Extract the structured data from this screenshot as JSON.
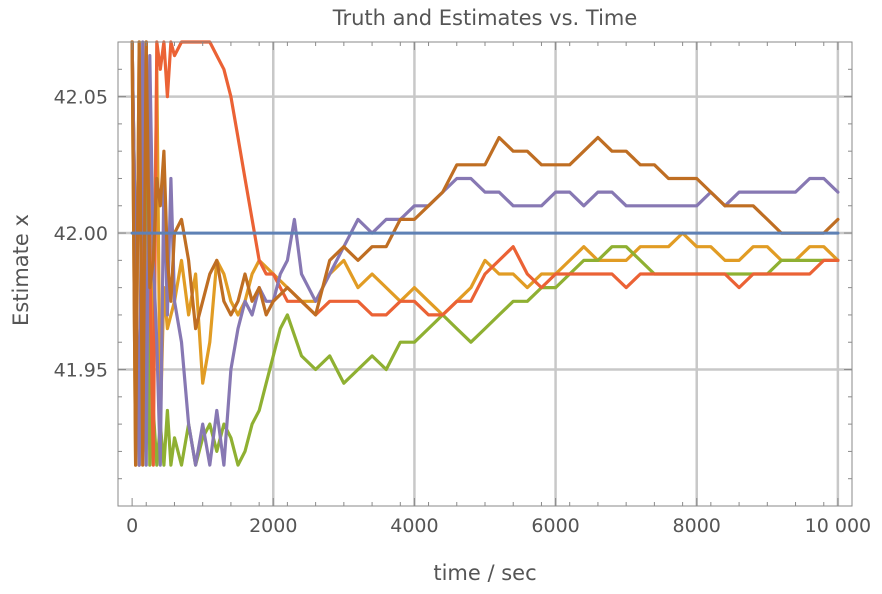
{
  "chart_data": {
    "type": "line",
    "title": "Truth and Estimates vs. Time",
    "xlabel": "time / sec",
    "ylabel": "Estimate x",
    "xlim": [
      -200,
      10200
    ],
    "ylim": [
      41.9,
      42.07
    ],
    "x_ticks": [
      0,
      2000,
      4000,
      6000,
      8000,
      10000
    ],
    "x_tick_labels": [
      "0",
      "2000",
      "4000",
      "6000",
      "8000",
      "10 000"
    ],
    "y_ticks": [
      41.95,
      42.0,
      42.05
    ],
    "y_tick_labels": [
      "41.95",
      "42.00",
      "42.05"
    ],
    "grid": true,
    "series": [
      {
        "color": "#5E81B5",
        "x": [
          0,
          10000
        ],
        "y": [
          42.0,
          42.0
        ]
      },
      {
        "color": "#E19C24",
        "x": [
          0,
          50,
          100,
          150,
          200,
          250,
          300,
          350,
          400,
          450,
          500,
          600,
          700,
          800,
          900,
          1000,
          1100,
          1200,
          1300,
          1400,
          1500,
          1600,
          1700,
          1800,
          2000,
          2200,
          2400,
          2600,
          2800,
          3000,
          3200,
          3400,
          3600,
          3800,
          4000,
          4200,
          4400,
          4600,
          4800,
          5000,
          5200,
          5400,
          5600,
          5800,
          6000,
          6200,
          6400,
          6600,
          6800,
          7000,
          7200,
          7400,
          7600,
          7800,
          8000,
          8200,
          8400,
          8600,
          8800,
          9000,
          9200,
          9400,
          9600,
          9800,
          10000
        ],
        "y": [
          42.07,
          41.915,
          42.07,
          41.92,
          41.99,
          42.04,
          41.96,
          42.06,
          41.93,
          41.98,
          41.965,
          41.975,
          41.99,
          41.97,
          41.985,
          41.945,
          41.96,
          41.99,
          41.985,
          41.975,
          41.97,
          41.975,
          41.985,
          41.99,
          41.985,
          41.98,
          41.975,
          41.975,
          41.985,
          41.99,
          41.98,
          41.985,
          41.98,
          41.975,
          41.98,
          41.975,
          41.97,
          41.975,
          41.98,
          41.99,
          41.985,
          41.985,
          41.98,
          41.985,
          41.985,
          41.99,
          41.995,
          41.99,
          41.99,
          41.99,
          41.995,
          41.995,
          41.995,
          42.0,
          41.995,
          41.995,
          41.99,
          41.99,
          41.995,
          41.995,
          41.99,
          41.99,
          41.995,
          41.995,
          41.99
        ]
      },
      {
        "color": "#8FB032",
        "x": [
          0,
          100,
          200,
          250,
          300,
          350,
          400,
          450,
          500,
          550,
          600,
          700,
          800,
          900,
          1000,
          1100,
          1200,
          1300,
          1400,
          1500,
          1600,
          1700,
          1800,
          1900,
          2000,
          2100,
          2200,
          2400,
          2600,
          2800,
          3000,
          3200,
          3400,
          3600,
          3800,
          4000,
          4200,
          4400,
          4600,
          4800,
          5000,
          5200,
          5400,
          5600,
          5800,
          6000,
          6200,
          6400,
          6600,
          6800,
          7000,
          7200,
          7400,
          7600,
          7800,
          8000,
          8200,
          8400,
          8600,
          8800,
          9000,
          9200,
          9400,
          9600,
          9800,
          10000
        ],
        "y": [
          42.07,
          41.915,
          42.07,
          41.915,
          41.935,
          41.915,
          41.93,
          41.915,
          41.935,
          41.915,
          41.925,
          41.915,
          41.93,
          41.915,
          41.925,
          41.93,
          41.92,
          41.93,
          41.925,
          41.915,
          41.92,
          41.93,
          41.935,
          41.945,
          41.955,
          41.965,
          41.97,
          41.955,
          41.95,
          41.955,
          41.945,
          41.95,
          41.955,
          41.95,
          41.96,
          41.96,
          41.965,
          41.97,
          41.965,
          41.96,
          41.965,
          41.97,
          41.975,
          41.975,
          41.98,
          41.98,
          41.985,
          41.99,
          41.99,
          41.995,
          41.995,
          41.99,
          41.985,
          41.985,
          41.985,
          41.985,
          41.985,
          41.985,
          41.985,
          41.985,
          41.985,
          41.99,
          41.99,
          41.99,
          41.99,
          41.99
        ]
      },
      {
        "color": "#EB6235",
        "x": [
          0,
          100,
          200,
          300,
          350,
          400,
          450,
          500,
          550,
          600,
          700,
          800,
          900,
          1000,
          1100,
          1200,
          1300,
          1400,
          1500,
          1600,
          1700,
          1800,
          1900,
          2000,
          2100,
          2200,
          2400,
          2600,
          2800,
          3000,
          3200,
          3400,
          3600,
          3800,
          4000,
          4200,
          4400,
          4600,
          4800,
          5000,
          5200,
          5400,
          5600,
          5800,
          6000,
          6200,
          6400,
          6600,
          6800,
          7000,
          7200,
          7400,
          7600,
          7800,
          8000,
          8200,
          8400,
          8600,
          8800,
          9000,
          9200,
          9400,
          9600,
          9800,
          10000
        ],
        "y": [
          42.07,
          41.915,
          42.07,
          41.915,
          42.07,
          42.06,
          42.07,
          42.05,
          42.07,
          42.065,
          42.07,
          42.07,
          42.07,
          42.07,
          42.07,
          42.065,
          42.06,
          42.05,
          42.035,
          42.02,
          42.005,
          41.99,
          41.985,
          41.985,
          41.98,
          41.975,
          41.975,
          41.97,
          41.975,
          41.975,
          41.975,
          41.97,
          41.97,
          41.975,
          41.975,
          41.97,
          41.97,
          41.975,
          41.975,
          41.985,
          41.99,
          41.995,
          41.985,
          41.98,
          41.985,
          41.985,
          41.985,
          41.985,
          41.985,
          41.98,
          41.985,
          41.985,
          41.985,
          41.985,
          41.985,
          41.985,
          41.985,
          41.98,
          41.985,
          41.985,
          41.985,
          41.985,
          41.985,
          41.99,
          41.99
        ]
      },
      {
        "color": "#8778B3",
        "x": [
          0,
          100,
          150,
          200,
          250,
          300,
          350,
          400,
          450,
          500,
          550,
          600,
          700,
          800,
          900,
          1000,
          1100,
          1200,
          1300,
          1400,
          1500,
          1600,
          1700,
          1800,
          1900,
          2000,
          2100,
          2200,
          2300,
          2400,
          2600,
          2800,
          3000,
          3200,
          3400,
          3600,
          3800,
          4000,
          4200,
          4400,
          4600,
          4800,
          5000,
          5200,
          5400,
          5600,
          5800,
          6000,
          6200,
          6400,
          6600,
          6800,
          7000,
          7200,
          7400,
          7600,
          7800,
          8000,
          8200,
          8400,
          8600,
          8800,
          9000,
          9200,
          9400,
          9600,
          9800,
          10000
        ],
        "y": [
          42.07,
          41.915,
          42.07,
          41.915,
          42.065,
          41.99,
          41.96,
          41.915,
          42.02,
          41.97,
          42.02,
          41.975,
          41.96,
          41.93,
          41.915,
          41.93,
          41.915,
          41.935,
          41.915,
          41.95,
          41.965,
          41.975,
          41.97,
          41.98,
          41.975,
          41.975,
          41.985,
          41.99,
          42.005,
          41.985,
          41.975,
          41.985,
          41.995,
          42.005,
          42.0,
          42.005,
          42.005,
          42.01,
          42.01,
          42.015,
          42.02,
          42.02,
          42.015,
          42.015,
          42.01,
          42.01,
          42.01,
          42.015,
          42.015,
          42.01,
          42.015,
          42.015,
          42.01,
          42.01,
          42.01,
          42.01,
          42.01,
          42.01,
          42.015,
          42.01,
          42.015,
          42.015,
          42.015,
          42.015,
          42.015,
          42.02,
          42.02,
          42.015
        ]
      },
      {
        "color": "#BF6E23",
        "x": [
          0,
          50,
          100,
          150,
          200,
          250,
          300,
          350,
          400,
          450,
          500,
          550,
          600,
          700,
          800,
          900,
          1000,
          1100,
          1200,
          1300,
          1400,
          1500,
          1600,
          1700,
          1800,
          1900,
          2000,
          2200,
          2400,
          2600,
          2800,
          3000,
          3200,
          3400,
          3600,
          3800,
          4000,
          4200,
          4400,
          4600,
          4800,
          5000,
          5200,
          5400,
          5600,
          5800,
          6000,
          6200,
          6400,
          6600,
          6800,
          7000,
          7200,
          7400,
          7600,
          7800,
          8000,
          8200,
          8400,
          8600,
          8800,
          9000,
          9200,
          9400,
          9600,
          9800,
          10000
        ],
        "y": [
          42.07,
          41.915,
          42.07,
          41.915,
          42.07,
          41.98,
          41.99,
          42.02,
          42.01,
          42.03,
          41.99,
          41.975,
          42.0,
          42.005,
          41.99,
          41.965,
          41.975,
          41.985,
          41.99,
          41.975,
          41.97,
          41.975,
          41.985,
          41.975,
          41.98,
          41.97,
          41.975,
          41.98,
          41.975,
          41.97,
          41.99,
          41.995,
          41.99,
          41.995,
          41.995,
          42.005,
          42.005,
          42.01,
          42.015,
          42.025,
          42.025,
          42.025,
          42.035,
          42.03,
          42.03,
          42.025,
          42.025,
          42.025,
          42.03,
          42.035,
          42.03,
          42.03,
          42.025,
          42.025,
          42.02,
          42.02,
          42.02,
          42.015,
          42.01,
          42.01,
          42.01,
          42.005,
          42.0,
          42.0,
          42.0,
          42.0,
          42.005
        ]
      }
    ]
  }
}
